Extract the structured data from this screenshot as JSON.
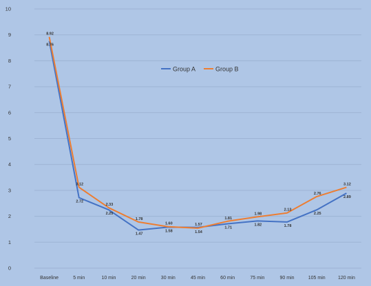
{
  "chart_data": {
    "type": "line",
    "title": "",
    "xlabel": "",
    "ylabel": "",
    "categories": [
      "Baseline",
      "5 min",
      "10 min",
      "20 min",
      "30 min",
      "45 min",
      "60 min",
      "75 min",
      "90 min",
      "105 min",
      "120 min"
    ],
    "ylim": [
      0,
      10
    ],
    "yticks": [
      "0",
      "1",
      "2",
      "3",
      "4",
      "5",
      "6",
      "7",
      "8",
      "9",
      "10"
    ],
    "grid": true,
    "legend_position": "upper-center",
    "series": [
      {
        "name": "Group A",
        "color": "#4472c4",
        "values": [
          8.76,
          2.72,
          2.25,
          1.47,
          1.58,
          1.57,
          1.71,
          1.82,
          1.78,
          2.25,
          2.89
        ],
        "labels": [
          "8.76",
          "2.72",
          "2.25",
          "1.47",
          "1.58",
          "1.57",
          "1.71",
          "1.82",
          "1.78",
          "2.25",
          "2.89"
        ]
      },
      {
        "name": "Group B",
        "color": "#ed7d31",
        "values": [
          8.92,
          3.12,
          2.33,
          1.78,
          1.6,
          1.54,
          1.81,
          1.98,
          2.13,
          2.76,
          3.12
        ],
        "labels": [
          "8.92",
          "3.12",
          "2.33",
          "1.78",
          "1.60",
          "1.54",
          "1.81",
          "1.98",
          "2.13",
          "2.76",
          "3.12"
        ]
      }
    ]
  }
}
